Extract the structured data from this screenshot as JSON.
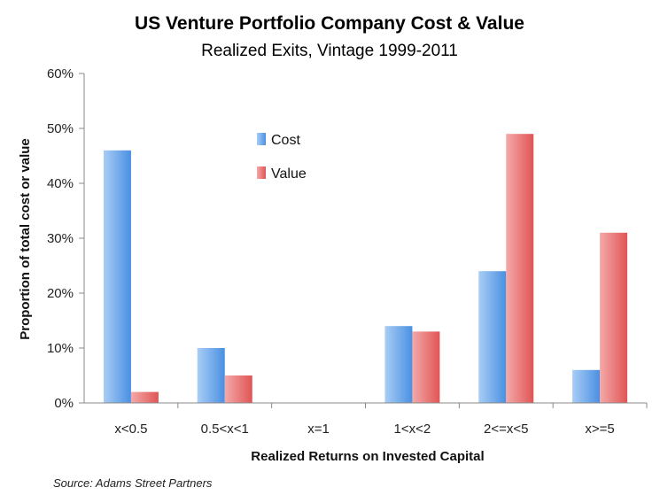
{
  "chart_data": {
    "type": "bar",
    "title": "US Venture Portfolio Company Cost & Value",
    "subtitle": "Realized Exits, Vintage 1999-2011",
    "xlabel": "Realized Returns on Invested Capital",
    "ylabel": "Proportion of total cost or value",
    "categories": [
      "x<0.5",
      "0.5<x<1",
      "x=1",
      "1<x<2",
      "2<=x<5",
      "x>=5"
    ],
    "series": [
      {
        "name": "Cost",
        "values": [
          46,
          10,
          0,
          14,
          24,
          6
        ],
        "color": "#4a90e2"
      },
      {
        "name": "Value",
        "values": [
          2,
          5,
          0,
          13,
          49,
          31
        ],
        "color": "#e05555"
      }
    ],
    "ylim": [
      0,
      60
    ],
    "yticks": [
      0,
      10,
      20,
      30,
      40,
      50,
      60
    ],
    "ytick_labels": [
      "0%",
      "10%",
      "20%",
      "30%",
      "40%",
      "50%",
      "60%"
    ],
    "grid": false,
    "legend_position": "top-center"
  },
  "source": "Source: Adams Street Partners"
}
